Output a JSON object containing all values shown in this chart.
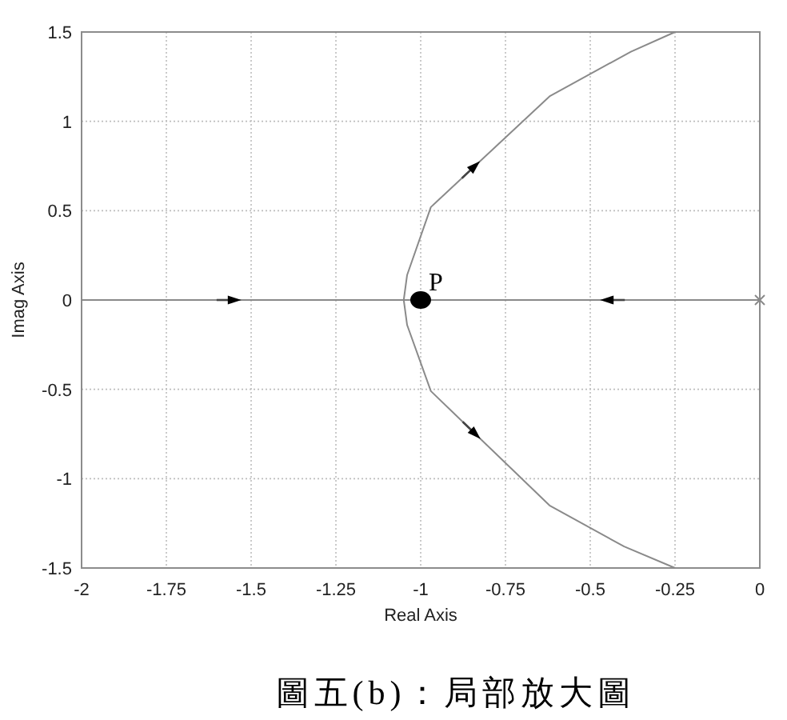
{
  "chart_data": {
    "type": "line",
    "xlabel": "Real Axis",
    "ylabel": "Imag Axis",
    "xlim": [
      -2,
      0
    ],
    "ylim": [
      -1.5,
      1.5
    ],
    "xticks": [
      -2,
      -1.75,
      -1.5,
      -1.25,
      -1,
      -0.75,
      -0.5,
      -0.25,
      0
    ],
    "yticks": [
      -1.5,
      -1,
      -0.5,
      0,
      0.5,
      1,
      1.5
    ],
    "grid": true,
    "series": [
      {
        "x": [
          -2,
          -1
        ],
        "values": [
          0,
          0
        ],
        "color": "#8a8a8a"
      },
      {
        "x": [
          0,
          -1
        ],
        "values": [
          0,
          0
        ],
        "color": "#8a8a8a"
      },
      {
        "x": [
          -0.25,
          -0.38,
          -0.62,
          -0.97,
          -1.04,
          -1.05,
          -1.04,
          -0.97,
          -0.62,
          -0.4,
          -0.25
        ],
        "values": [
          1.5,
          1.39,
          1.14,
          0.52,
          0.14,
          0,
          -0.14,
          -0.51,
          -1.15,
          -1.38,
          -1.5
        ],
        "color": "#8a8a8a"
      },
      {
        "type": "scatter",
        "x": [
          0
        ],
        "values": [
          0
        ],
        "color": "#8a8a8a",
        "marker": "cross"
      },
      {
        "type": "scatter",
        "x": [
          -1
        ],
        "values": [
          0
        ],
        "color": "#000000",
        "marker": "circle"
      }
    ],
    "annotations": [
      {
        "text": "P",
        "x": -1,
        "y": 0
      },
      "圖五(b)：局部放大圖"
    ]
  }
}
